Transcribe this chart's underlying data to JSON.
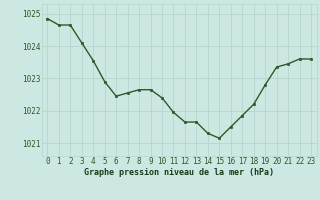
{
  "x": [
    0,
    1,
    2,
    3,
    4,
    5,
    6,
    7,
    8,
    9,
    10,
    11,
    12,
    13,
    14,
    15,
    16,
    17,
    18,
    19,
    20,
    21,
    22,
    23
  ],
  "y": [
    1024.85,
    1024.65,
    1024.65,
    1024.1,
    1023.55,
    1022.9,
    1022.45,
    1022.55,
    1022.65,
    1022.65,
    1022.4,
    1021.95,
    1021.65,
    1021.65,
    1021.3,
    1021.15,
    1021.5,
    1021.85,
    1022.2,
    1022.8,
    1023.35,
    1023.45,
    1023.6,
    1023.6
  ],
  "line_color": "#2d5a27",
  "marker": "s",
  "marker_size": 2.0,
  "bg_color": "#cde8e2",
  "grid_color": "#b8d4ce",
  "xlabel": "Graphe pression niveau de la mer (hPa)",
  "xlabel_color": "#1a3a18",
  "xlim": [
    -0.5,
    23.5
  ],
  "ylim": [
    1020.6,
    1025.3
  ],
  "yticks": [
    1021,
    1022,
    1023,
    1024,
    1025
  ],
  "xticks": [
    0,
    1,
    2,
    3,
    4,
    5,
    6,
    7,
    8,
    9,
    10,
    11,
    12,
    13,
    14,
    15,
    16,
    17,
    18,
    19,
    20,
    21,
    22,
    23
  ],
  "tick_fontsize": 5.5,
  "xlabel_fontsize": 6.0,
  "linewidth": 1.0
}
